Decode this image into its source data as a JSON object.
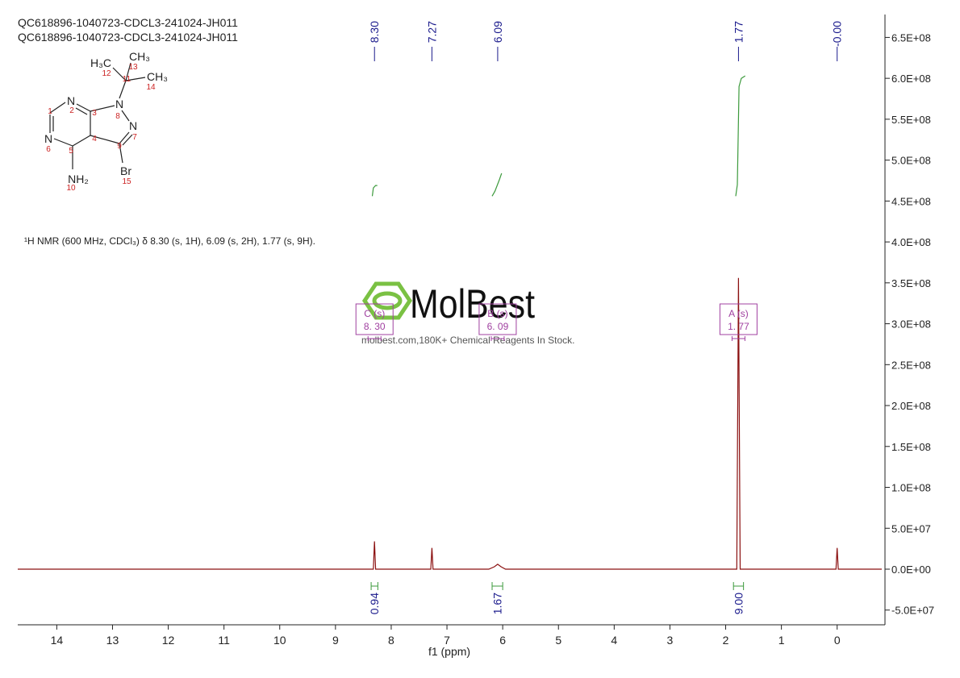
{
  "chart_data": {
    "type": "nmr",
    "title": "QC618896-1040723-CDCL3-241024-JH011",
    "subtitle": "QC618896-1040723-CDCL3-241024-JH011",
    "description": "¹H NMR (600 MHz, CDCl₃) δ 8.30 (s, 1H), 6.09 (s, 2H), 1.77 (s, 9H).",
    "watermark": "MolBest",
    "watermark_caption": "molbest.com,180K+ Chemical Reagents In Stock.",
    "x_label": "f1 (ppm)",
    "xlim": [
      14.7,
      -0.8
    ],
    "xticks": [
      14,
      13,
      12,
      11,
      10,
      9,
      8,
      7,
      6,
      5,
      4,
      3,
      2,
      1,
      0
    ],
    "ylim": [
      -68000000,
      678000000
    ],
    "yticks": [
      {
        "value": -50000000,
        "label": "-5.0E+07"
      },
      {
        "value": 0,
        "label": "0.0E+00"
      },
      {
        "value": 50000000,
        "label": "5.0E+07"
      },
      {
        "value": 100000000,
        "label": "1.0E+08"
      },
      {
        "value": 150000000,
        "label": "1.5E+08"
      },
      {
        "value": 200000000,
        "label": "2.0E+08"
      },
      {
        "value": 250000000,
        "label": "2.5E+08"
      },
      {
        "value": 300000000,
        "label": "3.0E+08"
      },
      {
        "value": 350000000,
        "label": "3.5E+08"
      },
      {
        "value": 400000000,
        "label": "4.0E+08"
      },
      {
        "value": 450000000,
        "label": "4.5E+08"
      },
      {
        "value": 500000000,
        "label": "5.0E+08"
      },
      {
        "value": 550000000,
        "label": "5.5E+08"
      },
      {
        "value": 600000000,
        "label": "6.0E+08"
      },
      {
        "value": 650000000,
        "label": "6.5E+08"
      }
    ],
    "series": [
      {
        "color": "#8b1010",
        "x": [
          14.7,
          8.32,
          8.3,
          8.28,
          7.29,
          7.27,
          7.25,
          6.25,
          6.15,
          6.09,
          6.03,
          5.95,
          1.8,
          1.77,
          1.74,
          0.02,
          0,
          -0.02,
          -0.8
        ],
        "values": [
          0,
          0,
          34000000,
          0,
          0,
          26000000,
          0,
          0,
          3000000,
          6000000,
          3000000,
          0,
          0,
          356000000,
          0,
          0,
          26000000,
          0,
          0
        ]
      }
    ],
    "peak_labels": [
      {
        "value": 8.3,
        "label": "8.30"
      },
      {
        "value": 7.27,
        "label": "7.27"
      },
      {
        "value": 6.09,
        "label": "6.09"
      },
      {
        "value": 1.77,
        "label": "1.77"
      },
      {
        "value": 0,
        "label": "-0.00"
      }
    ],
    "integral_color": "#3c9a3c",
    "integral_curves": [
      {
        "x": [
          8.34,
          8.32,
          8.28,
          8.25
        ],
        "values": [
          456000000,
          466000000,
          469000000,
          469000000
        ]
      },
      {
        "x": [
          6.19,
          6.14,
          6.06,
          6.02
        ],
        "values": [
          456000000,
          462000000,
          476000000,
          484000000
        ]
      },
      {
        "x": [
          1.82,
          1.79,
          1.76,
          1.72,
          1.65
        ],
        "values": [
          456000000,
          470000000,
          590000000,
          600000000,
          603000000
        ]
      }
    ],
    "integrations": [
      {
        "value": 0.94,
        "label": "0.94",
        "range": [
          8.36,
          8.24
        ]
      },
      {
        "value": 1.67,
        "label": "1.67",
        "range": [
          6.19,
          6.0
        ]
      },
      {
        "value": 9.0,
        "label": "9.00",
        "range": [
          1.86,
          1.68
        ]
      }
    ],
    "multiplets": [
      {
        "name": "C (s)",
        "shift": {
          "value": 8.3,
          "label": "8. 30"
        }
      },
      {
        "name": "B (s)",
        "shift": {
          "value": 6.09,
          "label": "6. 09"
        }
      },
      {
        "name": "A (s)",
        "shift": {
          "value": 1.77,
          "label": "1. 77"
        }
      }
    ]
  },
  "structure": {
    "labels": [
      "N",
      "2",
      "1",
      "N",
      "6",
      "5",
      "3",
      "4",
      "N",
      "8",
      "N",
      "7",
      "9",
      "NH₂",
      "10",
      "Br",
      "15",
      "H₃C",
      "12",
      "11",
      "CH₃",
      "13",
      "CH₃",
      "14"
    ]
  }
}
